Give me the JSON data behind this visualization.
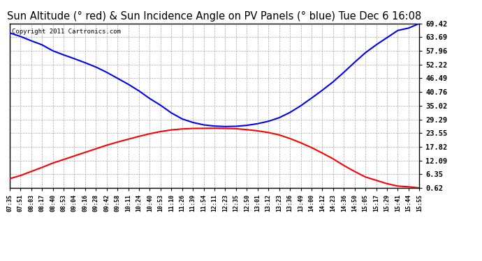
{
  "title": "Sun Altitude (° red) & Sun Incidence Angle on PV Panels (° blue) Tue Dec 6 16:08",
  "copyright": "Copyright 2011 Cartronics.com",
  "yticks": [
    0.62,
    6.35,
    12.09,
    17.82,
    23.55,
    29.29,
    35.02,
    40.76,
    46.49,
    52.22,
    57.96,
    63.69,
    69.42
  ],
  "ymin": 0.62,
  "ymax": 69.42,
  "x_labels": [
    "07:35",
    "07:51",
    "08:03",
    "08:17",
    "08:40",
    "08:53",
    "09:04",
    "09:16",
    "09:28",
    "09:42",
    "09:58",
    "10:11",
    "10:24",
    "10:40",
    "10:53",
    "11:10",
    "11:26",
    "11:39",
    "11:54",
    "12:11",
    "12:23",
    "12:35",
    "12:50",
    "13:01",
    "13:12",
    "13:23",
    "13:36",
    "13:49",
    "14:00",
    "14:12",
    "14:23",
    "14:36",
    "14:50",
    "15:05",
    "15:17",
    "15:29",
    "15:41",
    "15:44",
    "15:55"
  ],
  "bg_color": "#ffffff",
  "plot_bg_color": "#ffffff",
  "grid_color": "#aaaaaa",
  "title_fontsize": 10.5,
  "line_color_blue": "#0000ff",
  "line_color_red": "#ff0000",
  "red_data": [
    4.5,
    5.8,
    7.5,
    9.2,
    11.0,
    12.5,
    14.0,
    15.5,
    17.0,
    18.5,
    19.8,
    21.0,
    22.2,
    23.3,
    24.2,
    24.9,
    25.3,
    25.5,
    25.55,
    25.6,
    25.5,
    25.4,
    25.0,
    24.5,
    23.8,
    22.8,
    21.3,
    19.5,
    17.5,
    15.2,
    12.8,
    10.0,
    7.5,
    5.2,
    3.8,
    2.4,
    1.4,
    1.1,
    0.62
  ],
  "blue_data": [
    65.5,
    64.0,
    62.2,
    60.5,
    58.0,
    56.3,
    54.7,
    53.0,
    51.2,
    49.0,
    46.5,
    44.0,
    41.2,
    38.0,
    35.2,
    32.0,
    29.5,
    28.0,
    27.0,
    26.5,
    26.3,
    26.4,
    26.8,
    27.5,
    28.5,
    30.0,
    32.2,
    35.0,
    38.2,
    41.5,
    45.0,
    49.0,
    53.2,
    57.2,
    60.5,
    63.5,
    66.5,
    67.5,
    69.42
  ]
}
